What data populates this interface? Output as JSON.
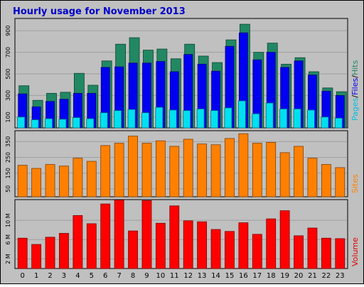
{
  "title": "Hourly usage for November 2013",
  "colors": {
    "background": "#c0c0c0",
    "title": "#0000cc",
    "hits": "#218863",
    "files": "#0000f0",
    "pages": "#00e0f0",
    "sites": "#ff8000",
    "volume": "#ff0000"
  },
  "legends": {
    "top": [
      {
        "text": "Pages",
        "color": "#00c0e0"
      },
      {
        "text": "/",
        "color": "#000000"
      },
      {
        "text": "Files",
        "color": "#0000f0"
      },
      {
        "text": "/",
        "color": "#000000"
      },
      {
        "text": "Hits",
        "color": "#218863"
      }
    ],
    "sites": "Sites",
    "volume": "Volume"
  },
  "chart_data": [
    {
      "type": "bar",
      "panel": "pages-files-hits",
      "categories": [
        "0",
        "1",
        "2",
        "3",
        "4",
        "5",
        "6",
        "7",
        "8",
        "9",
        "10",
        "11",
        "12",
        "13",
        "14",
        "15",
        "16",
        "17",
        "18",
        "19",
        "20",
        "21",
        "22",
        "23"
      ],
      "ylim": [
        0,
        1000
      ],
      "yticks": [
        "100",
        "300",
        "500",
        "700",
        "900"
      ],
      "series": [
        {
          "name": "Hits",
          "values": [
            390,
            255,
            320,
            330,
            505,
            395,
            620,
            775,
            835,
            720,
            730,
            640,
            775,
            665,
            605,
            815,
            960,
            700,
            785,
            590,
            650,
            520,
            370,
            335
          ]
        },
        {
          "name": "Files",
          "values": [
            315,
            195,
            245,
            265,
            320,
            320,
            560,
            565,
            600,
            600,
            615,
            520,
            680,
            590,
            525,
            755,
            880,
            630,
            700,
            560,
            620,
            490,
            340,
            300
          ]
        },
        {
          "name": "Pages",
          "values": [
            100,
            75,
            85,
            80,
            95,
            85,
            140,
            160,
            170,
            140,
            190,
            165,
            160,
            175,
            160,
            185,
            250,
            130,
            230,
            175,
            175,
            165,
            100,
            90
          ]
        }
      ]
    },
    {
      "type": "bar",
      "panel": "sites",
      "categories": [
        "0",
        "1",
        "2",
        "3",
        "4",
        "5",
        "6",
        "7",
        "8",
        "9",
        "10",
        "11",
        "12",
        "13",
        "14",
        "15",
        "16",
        "17",
        "18",
        "19",
        "20",
        "21",
        "22",
        "23"
      ],
      "ylim": [
        0,
        410
      ],
      "yticks": [
        "50",
        "150",
        "250",
        "350"
      ],
      "series": [
        {
          "name": "Sites",
          "values": [
            200,
            180,
            205,
            195,
            245,
            225,
            325,
            340,
            385,
            340,
            355,
            320,
            365,
            335,
            330,
            370,
            400,
            340,
            345,
            280,
            320,
            245,
            205,
            185
          ]
        }
      ]
    },
    {
      "type": "bar",
      "panel": "volume",
      "categories": [
        "0",
        "1",
        "2",
        "3",
        "4",
        "5",
        "6",
        "7",
        "8",
        "9",
        "10",
        "11",
        "12",
        "13",
        "14",
        "15",
        "16",
        "17",
        "18",
        "19",
        "20",
        "21",
        "22",
        "23"
      ],
      "ylim": [
        0,
        14
      ],
      "yticks": [
        "2 M",
        "6 M",
        "10 M"
      ],
      "series": [
        {
          "name": "Volume",
          "values": [
            6.3,
            5.0,
            6.5,
            7.3,
            11.0,
            9.3,
            13.4,
            14.2,
            7.8,
            14.1,
            9.4,
            13.0,
            9.9,
            9.7,
            8.1,
            7.7,
            9.5,
            7.1,
            10.3,
            12.0,
            6.8,
            8.4,
            6.3,
            6.2
          ]
        }
      ]
    }
  ]
}
